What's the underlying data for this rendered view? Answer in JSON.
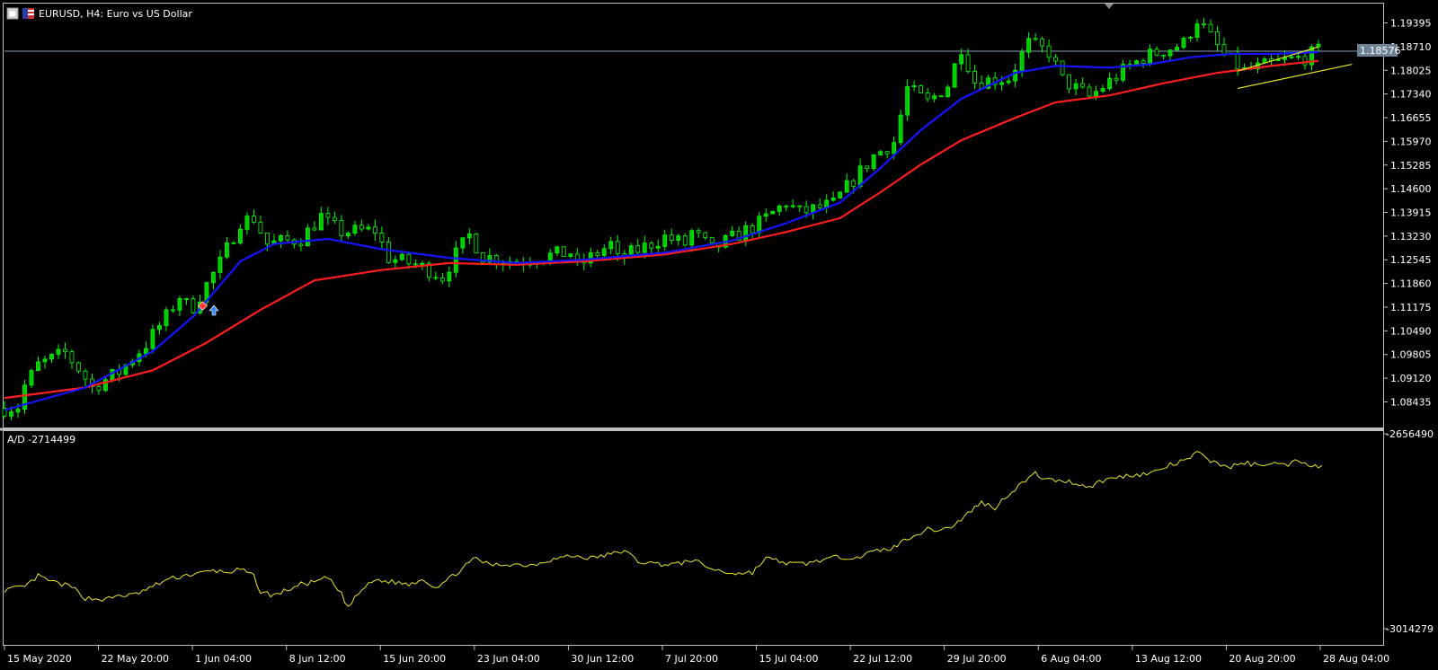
{
  "chart_header": {
    "symbol_label": "EURUSD, H4:  Euro vs US Dollar",
    "indicator_label": "A/D -2714499",
    "current_price_label": "1.18576"
  },
  "colors": {
    "background": "#000000",
    "frame": "#c0c0c0",
    "candle_body": "#00c800",
    "candle_wick": "#00ff00",
    "ma_fast": "#1414ff",
    "ma_slow": "#ff1e1e",
    "channel": "#e6e628",
    "ad_line": "#e6e628",
    "price_line": "#8ca0b4"
  },
  "chart_data": [
    {
      "type": "candlestick",
      "name": "EURUSD H4",
      "price_axis": {
        "range": [
          1.0785,
          1.1985
        ],
        "ticks": [
          "1.19395",
          "1.18710",
          "1.18025",
          "1.17340",
          "1.16655",
          "1.15970",
          "1.15285",
          "1.14600",
          "1.13915",
          "1.13230",
          "1.12545",
          "1.11860",
          "1.11175",
          "1.10490",
          "1.09805",
          "1.09120",
          "1.08435"
        ]
      },
      "current_price": 1.18576,
      "x_ticks": [
        "15 May 2020",
        "22 May 20:00",
        "1 Jun 04:00",
        "8 Jun 12:00",
        "15 Jun 20:00",
        "23 Jun 04:00",
        "30 Jun 12:00",
        "7 Jul 20:00",
        "15 Jul 04:00",
        "22 Jul 12:00",
        "29 Jul 20:00",
        "6 Aug 04:00",
        "13 Aug 12:00",
        "20 Aug 20:00",
        "28 Aug 04:00"
      ],
      "close_path": [
        [
          0,
          1.0825
        ],
        [
          2,
          1.083
        ],
        [
          3,
          1.089
        ],
        [
          5,
          1.095
        ],
        [
          9,
          1.0985
        ],
        [
          11,
          1.094
        ],
        [
          13,
          1.0885
        ],
        [
          17,
          1.093
        ],
        [
          21,
          1.101
        ],
        [
          24,
          1.109
        ],
        [
          26,
          1.115
        ],
        [
          27,
          1.1125
        ],
        [
          28,
          1.112
        ],
        [
          32,
          1.1245
        ],
        [
          35,
          1.1365
        ],
        [
          37,
          1.1375
        ],
        [
          39,
          1.13
        ],
        [
          44,
          1.1315
        ],
        [
          47,
          1.138
        ],
        [
          48,
          1.136
        ],
        [
          50,
          1.1335
        ],
        [
          55,
          1.134
        ],
        [
          57,
          1.126
        ],
        [
          61,
          1.124
        ],
        [
          63,
          1.1225
        ],
        [
          65,
          1.1205
        ],
        [
          67,
          1.127
        ],
        [
          69,
          1.1325
        ],
        [
          71,
          1.1265
        ],
        [
          76,
          1.125
        ],
        [
          80,
          1.1265
        ],
        [
          84,
          1.1275
        ],
        [
          85,
          1.1235
        ],
        [
          90,
          1.13
        ],
        [
          91,
          1.1255
        ],
        [
          98,
          1.132
        ],
        [
          101,
          1.13
        ],
        [
          102,
          1.1335
        ],
        [
          105,
          1.1285
        ],
        [
          112,
          1.136
        ],
        [
          116,
          1.142
        ],
        [
          118,
          1.139
        ],
        [
          123,
          1.1415
        ],
        [
          124,
          1.144
        ],
        [
          129,
          1.1555
        ],
        [
          132,
          1.1595
        ],
        [
          134,
          1.175
        ],
        [
          137,
          1.171
        ],
        [
          140,
          1.176
        ],
        [
          142,
          1.187
        ],
        [
          144,
          1.177
        ],
        [
          149,
          1.178
        ],
        [
          152,
          1.188
        ],
        [
          155,
          1.1855
        ],
        [
          157,
          1.1775
        ],
        [
          161,
          1.1725
        ],
        [
          166,
          1.18
        ],
        [
          169,
          1.184
        ],
        [
          175,
          1.188
        ],
        [
          177,
          1.195
        ],
        [
          181,
          1.1845
        ],
        [
          184,
          1.18
        ],
        [
          186,
          1.181
        ],
        [
          188,
          1.182
        ],
        [
          190,
          1.183
        ],
        [
          193,
          1.184
        ],
        [
          195,
          1.1858
        ]
      ],
      "ma_fast_path": [
        [
          0,
          1.082
        ],
        [
          12,
          1.0885
        ],
        [
          22,
          1.099
        ],
        [
          28,
          1.109
        ],
        [
          35,
          1.125
        ],
        [
          40,
          1.13
        ],
        [
          48,
          1.1315
        ],
        [
          56,
          1.1285
        ],
        [
          66,
          1.126
        ],
        [
          76,
          1.1245
        ],
        [
          86,
          1.1255
        ],
        [
          98,
          1.1275
        ],
        [
          108,
          1.131
        ],
        [
          116,
          1.136
        ],
        [
          124,
          1.142
        ],
        [
          130,
          1.152
        ],
        [
          136,
          1.163
        ],
        [
          142,
          1.172
        ],
        [
          150,
          1.1795
        ],
        [
          156,
          1.1815
        ],
        [
          164,
          1.181
        ],
        [
          170,
          1.182
        ],
        [
          176,
          1.184
        ],
        [
          182,
          1.185
        ],
        [
          188,
          1.185
        ],
        [
          195,
          1.1855
        ]
      ],
      "ma_slow_path": [
        [
          0,
          1.0855
        ],
        [
          12,
          1.0885
        ],
        [
          22,
          1.0935
        ],
        [
          30,
          1.1015
        ],
        [
          38,
          1.111
        ],
        [
          46,
          1.1195
        ],
        [
          56,
          1.1225
        ],
        [
          66,
          1.1245
        ],
        [
          76,
          1.124
        ],
        [
          86,
          1.125
        ],
        [
          98,
          1.127
        ],
        [
          108,
          1.13
        ],
        [
          116,
          1.1335
        ],
        [
          124,
          1.1375
        ],
        [
          130,
          1.145
        ],
        [
          136,
          1.153
        ],
        [
          142,
          1.16
        ],
        [
          150,
          1.1665
        ],
        [
          156,
          1.171
        ],
        [
          164,
          1.173
        ],
        [
          172,
          1.1765
        ],
        [
          180,
          1.1795
        ],
        [
          188,
          1.1815
        ],
        [
          195,
          1.183
        ]
      ],
      "channel_lines": [
        {
          "from": [
            183,
            1.18
          ],
          "to": [
            195,
            1.187
          ]
        },
        {
          "from": [
            183,
            1.175
          ],
          "to": [
            200,
            1.182
          ]
        }
      ],
      "bar_count": 196
    },
    {
      "type": "line",
      "name": "A/D",
      "axis_ticks": [
        "-2656490",
        "-3014279"
      ],
      "range": [
        -3014279,
        -2656490
      ],
      "points": [
        [
          0,
          -2940000
        ],
        [
          3,
          -2935000
        ],
        [
          5,
          -2915000
        ],
        [
          7,
          -2925000
        ],
        [
          10,
          -2935000
        ],
        [
          12,
          -2955000
        ],
        [
          15,
          -2958000
        ],
        [
          17,
          -2950000
        ],
        [
          19,
          -2950000
        ],
        [
          21,
          -2940000
        ],
        [
          24,
          -2922000
        ],
        [
          27,
          -2913000
        ],
        [
          29,
          -2910000
        ],
        [
          31,
          -2905000
        ],
        [
          33,
          -2908000
        ],
        [
          35,
          -2903000
        ],
        [
          37,
          -2915000
        ],
        [
          38,
          -2944000
        ],
        [
          40,
          -2950000
        ],
        [
          42,
          -2940000
        ],
        [
          44,
          -2930000
        ],
        [
          46,
          -2926000
        ],
        [
          48,
          -2918000
        ],
        [
          50,
          -2948000
        ],
        [
          51,
          -2972000
        ],
        [
          53,
          -2940000
        ],
        [
          55,
          -2922000
        ],
        [
          58,
          -2926000
        ],
        [
          60,
          -2930000
        ],
        [
          62,
          -2920000
        ],
        [
          64,
          -2935000
        ],
        [
          66,
          -2920000
        ],
        [
          68,
          -2900000
        ],
        [
          70,
          -2882000
        ],
        [
          72,
          -2895000
        ],
        [
          75,
          -2893000
        ],
        [
          78,
          -2895000
        ],
        [
          81,
          -2885000
        ],
        [
          84,
          -2878000
        ],
        [
          87,
          -2882000
        ],
        [
          90,
          -2875000
        ],
        [
          92,
          -2868000
        ],
        [
          94,
          -2888000
        ],
        [
          97,
          -2893000
        ],
        [
          100,
          -2893000
        ],
        [
          102,
          -2885000
        ],
        [
          105,
          -2902000
        ],
        [
          107,
          -2908000
        ],
        [
          109,
          -2910000
        ],
        [
          111,
          -2908000
        ],
        [
          113,
          -2882000
        ],
        [
          115,
          -2888000
        ],
        [
          117,
          -2893000
        ],
        [
          119,
          -2892000
        ],
        [
          121,
          -2886000
        ],
        [
          124,
          -2880000
        ],
        [
          127,
          -2879000
        ],
        [
          129,
          -2870000
        ],
        [
          132,
          -2863000
        ],
        [
          134,
          -2845000
        ],
        [
          137,
          -2830000
        ],
        [
          139,
          -2830000
        ],
        [
          141,
          -2822000
        ],
        [
          143,
          -2800000
        ],
        [
          145,
          -2780000
        ],
        [
          147,
          -2790000
        ],
        [
          149,
          -2765000
        ],
        [
          151,
          -2745000
        ],
        [
          153,
          -2728000
        ],
        [
          155,
          -2740000
        ],
        [
          157,
          -2740000
        ],
        [
          159,
          -2745000
        ],
        [
          161,
          -2752000
        ],
        [
          163,
          -2740000
        ],
        [
          165,
          -2735000
        ],
        [
          167,
          -2730000
        ],
        [
          170,
          -2728000
        ],
        [
          173,
          -2712000
        ],
        [
          175,
          -2705000
        ],
        [
          177,
          -2690000
        ],
        [
          180,
          -2710000
        ],
        [
          182,
          -2715000
        ],
        [
          184,
          -2708000
        ],
        [
          186,
          -2712000
        ],
        [
          188,
          -2707000
        ],
        [
          190,
          -2713000
        ],
        [
          192,
          -2702000
        ],
        [
          194,
          -2712000
        ],
        [
          195,
          -2714499
        ]
      ]
    }
  ]
}
